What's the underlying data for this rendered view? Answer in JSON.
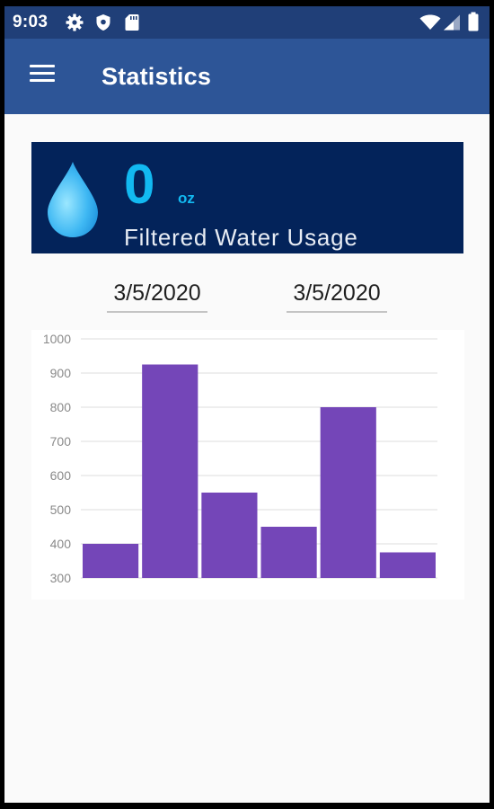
{
  "status_bar": {
    "time": "9:03",
    "icons": [
      "gear-icon",
      "shield-icon",
      "sd-card-icon",
      "wifi-icon",
      "signal-icon",
      "battery-icon"
    ]
  },
  "app_bar": {
    "title": "Statistics",
    "menu_icon": "hamburger-menu-icon"
  },
  "usage": {
    "value": "0",
    "unit": "oz",
    "label": "Filtered Water Usage",
    "icon": "water-drop-icon"
  },
  "date_range": {
    "start": "3/5/2020",
    "end": "3/5/2020"
  },
  "colors": {
    "status_bar": "#203f78",
    "app_bar": "#2d5597",
    "card_background": "#03235a",
    "accent": "#12b9f1",
    "bar": "#7446b8"
  },
  "chart_data": {
    "type": "bar",
    "values": [
      400,
      925,
      550,
      450,
      800,
      375
    ],
    "ylim": [
      300,
      1000
    ],
    "yticks": [
      "1000",
      "900",
      "800",
      "700",
      "600",
      "500",
      "400",
      "300"
    ],
    "grid": true
  }
}
